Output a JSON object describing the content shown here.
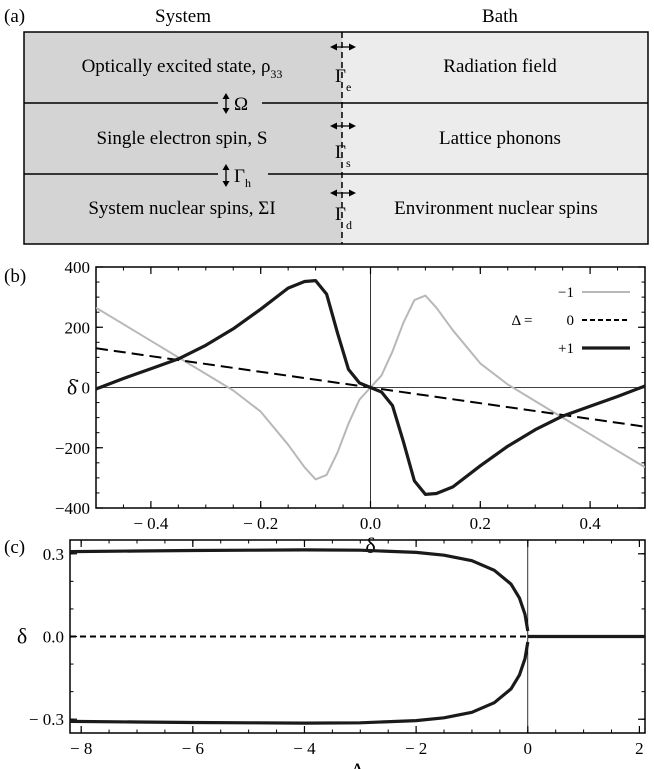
{
  "panel_a": {
    "label": "(a)",
    "system_heading": "System",
    "bath_heading": "Bath",
    "rows": [
      {
        "system": "Optically excited state, ρ",
        "system_sub": "33",
        "bath": "Radiation field",
        "gamma": "Γ",
        "gamma_sub": "e"
      },
      {
        "system": "Single electron spin, S",
        "system_sub": "",
        "bath": "Lattice phonons",
        "gamma": "Γ",
        "gamma_sub": "s"
      },
      {
        "system": "System nuclear spins, ΣI",
        "system_sub": "",
        "bath": "Environment nuclear spins",
        "gamma": "Γ",
        "gamma_sub": "d"
      }
    ],
    "couplings": [
      {
        "symbol": "Ω",
        "sub": ""
      },
      {
        "symbol": "Γ",
        "sub": "h"
      }
    ],
    "colors": {
      "system": "#d4d4d4",
      "bath": "#ececec"
    }
  },
  "chart_data": [
    {
      "type": "line",
      "panel_label": "(b)",
      "xlabel": "δ",
      "ylabel": "δ̇",
      "xlim": [
        -0.5,
        0.5
      ],
      "ylim": [
        -400,
        400
      ],
      "xticks": [
        -0.4,
        -0.2,
        0.0,
        0.2,
        0.4
      ],
      "xtick_labels": [
        "− 0.4",
        "− 0.2",
        "0.0",
        "0.2",
        "0.4"
      ],
      "yticks": [
        400,
        200,
        0,
        -200,
        -400
      ],
      "ytick_labels": [
        "400",
        "200",
        "0",
        "−200",
        "−400"
      ],
      "legend": {
        "prefix": "Δ =",
        "entries": [
          "−1",
          "0",
          "+1"
        ],
        "placement": "top-right"
      },
      "series": [
        {
          "name": "−1",
          "color": "#b8b8b8",
          "style": "solid",
          "x": [
            -0.5,
            -0.45,
            -0.4,
            -0.35,
            -0.3,
            -0.25,
            -0.2,
            -0.15,
            -0.12,
            -0.1,
            -0.08,
            -0.06,
            -0.04,
            -0.02,
            0,
            0.02,
            0.04,
            0.06,
            0.08,
            0.1,
            0.12,
            0.15,
            0.2,
            0.25,
            0.3,
            0.35,
            0.4,
            0.45,
            0.5
          ],
          "y": [
            265,
            210,
            155,
            100,
            45,
            -10,
            -80,
            -190,
            -265,
            -305,
            -290,
            -215,
            -120,
            -40,
            0,
            40,
            120,
            215,
            290,
            305,
            265,
            190,
            80,
            10,
            -45,
            -100,
            -155,
            -210,
            -265
          ]
        },
        {
          "name": "0",
          "color": "#000000",
          "style": "dashed",
          "x": [
            -0.5,
            0.5
          ],
          "y": [
            130,
            -130
          ]
        },
        {
          "name": "+1",
          "color": "#1a1a1a",
          "style": "solid",
          "x": [
            -0.5,
            -0.45,
            -0.4,
            -0.35,
            -0.3,
            -0.25,
            -0.2,
            -0.15,
            -0.12,
            -0.1,
            -0.08,
            -0.06,
            -0.04,
            -0.02,
            0,
            0.02,
            0.04,
            0.06,
            0.08,
            0.1,
            0.12,
            0.15,
            0.2,
            0.25,
            0.3,
            0.35,
            0.4,
            0.45,
            0.5
          ],
          "y": [
            -5,
            30,
            62,
            95,
            140,
            195,
            260,
            330,
            352,
            355,
            310,
            180,
            60,
            15,
            0,
            -15,
            -60,
            -180,
            -310,
            -355,
            -352,
            -330,
            -260,
            -195,
            -140,
            -95,
            -62,
            -30,
            5
          ]
        }
      ]
    },
    {
      "type": "line",
      "panel_label": "(c)",
      "xlabel": "Δ",
      "ylabel": "δ",
      "xlim": [
        -8.2,
        2.1
      ],
      "ylim": [
        -0.35,
        0.35
      ],
      "xticks": [
        -8,
        -6,
        -4,
        -2,
        0,
        2
      ],
      "xtick_labels": [
        "− 8",
        "− 6",
        "− 4",
        "− 2",
        "0",
        "2"
      ],
      "yticks": [
        0.3,
        0.0,
        -0.3
      ],
      "ytick_labels": [
        "0.3",
        "0.0",
        "− 0.3"
      ],
      "series": [
        {
          "name": "",
          "color": "#1a1a1a",
          "style": "solid",
          "x": [
            -8.2,
            -7,
            -6,
            -5,
            -4,
            -3,
            -2,
            -1.5,
            -1,
            -0.6,
            -0.3,
            -0.15,
            -0.05,
            0
          ],
          "y": [
            0.308,
            0.31,
            0.312,
            0.313,
            0.314,
            0.313,
            0.305,
            0.295,
            0.275,
            0.24,
            0.19,
            0.14,
            0.08,
            0.02
          ]
        },
        {
          "name": "",
          "color": "#1a1a1a",
          "style": "solid",
          "x": [
            -8.2,
            -7,
            -6,
            -5,
            -4,
            -3,
            -2,
            -1.5,
            -1,
            -0.6,
            -0.3,
            -0.15,
            -0.05,
            0
          ],
          "y": [
            -0.308,
            -0.31,
            -0.312,
            -0.313,
            -0.314,
            -0.313,
            -0.305,
            -0.295,
            -0.275,
            -0.24,
            -0.19,
            -0.14,
            -0.08,
            -0.02
          ]
        },
        {
          "name": "",
          "color": "#000000",
          "style": "dashed",
          "x": [
            -8.2,
            0
          ],
          "y": [
            0,
            0
          ]
        },
        {
          "name": "",
          "color": "#1a1a1a",
          "style": "solid",
          "x": [
            0,
            2.1
          ],
          "y": [
            0,
            0
          ]
        }
      ]
    }
  ]
}
